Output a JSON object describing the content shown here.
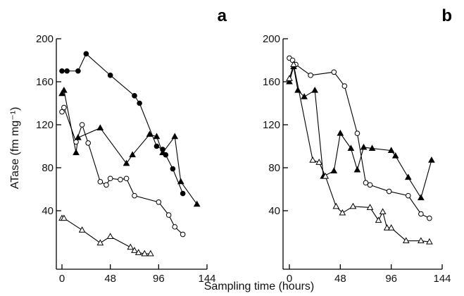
{
  "xlabel": "Sampling time (hours)",
  "ylabel": "ATase (fm mg⁻¹)",
  "chart_data": [
    {
      "panel": "a",
      "type": "line",
      "xlim": [
        0,
        144
      ],
      "ylim": [
        0,
        200
      ],
      "xticks": [
        0,
        48,
        96,
        144
      ],
      "yticks": [
        40,
        80,
        120,
        160,
        200
      ],
      "series": [
        {
          "marker": "filled-circle",
          "x": [
            0,
            5,
            16,
            24,
            48,
            72,
            77,
            94,
            100,
            103,
            110,
            120
          ],
          "y": [
            170,
            170,
            170,
            186,
            166,
            147,
            140,
            100,
            97,
            92,
            79,
            56
          ]
        },
        {
          "marker": "filled-triangle",
          "x": [
            0,
            2,
            14,
            16,
            38,
            64,
            70,
            87,
            94,
            100,
            112,
            118,
            134
          ],
          "y": [
            149,
            152,
            94,
            108,
            117,
            84,
            92,
            111,
            109,
            94,
            109,
            67,
            46
          ]
        },
        {
          "marker": "open-circle",
          "x": [
            0,
            2,
            14,
            20,
            26,
            38,
            44,
            48,
            58,
            64,
            72,
            96,
            106,
            112,
            120
          ],
          "y": [
            132,
            136,
            104,
            120,
            103,
            67,
            64,
            70,
            69,
            70,
            54,
            48,
            36,
            25,
            18
          ]
        },
        {
          "marker": "open-triangle",
          "x": [
            0,
            2,
            20,
            38,
            48,
            68,
            72,
            76,
            82,
            88
          ],
          "y": [
            33,
            33,
            22,
            10,
            16,
            6,
            3,
            1,
            0,
            0
          ]
        }
      ]
    },
    {
      "panel": "b",
      "type": "line",
      "xlim": [
        0,
        144
      ],
      "ylim": [
        0,
        200
      ],
      "xticks": [
        0,
        48,
        96,
        144
      ],
      "yticks": [
        40,
        80,
        120,
        160,
        200
      ],
      "series": [
        {
          "marker": "open-circle",
          "x": [
            0,
            3,
            6,
            20,
            42,
            52,
            64,
            72,
            76,
            94,
            112,
            124,
            132
          ],
          "y": [
            182,
            180,
            176,
            166,
            169,
            156,
            112,
            66,
            64,
            58,
            54,
            37,
            33
          ]
        },
        {
          "marker": "filled-triangle",
          "x": [
            0,
            4,
            8,
            14,
            24,
            32,
            42,
            48,
            58,
            64,
            70,
            78,
            96,
            100,
            112,
            124,
            134
          ],
          "y": [
            160,
            174,
            152,
            146,
            152,
            72,
            77,
            112,
            98,
            78,
            99,
            98,
            96,
            91,
            71,
            52,
            87
          ]
        },
        {
          "marker": "open-triangle",
          "x": [
            0,
            4,
            22,
            28,
            34,
            44,
            50,
            60,
            76,
            84,
            88,
            92,
            96,
            110,
            124,
            132
          ],
          "y": [
            163,
            176,
            87,
            85,
            72,
            44,
            38,
            44,
            43,
            31,
            39,
            24,
            24,
            12,
            12,
            11
          ]
        }
      ]
    }
  ]
}
